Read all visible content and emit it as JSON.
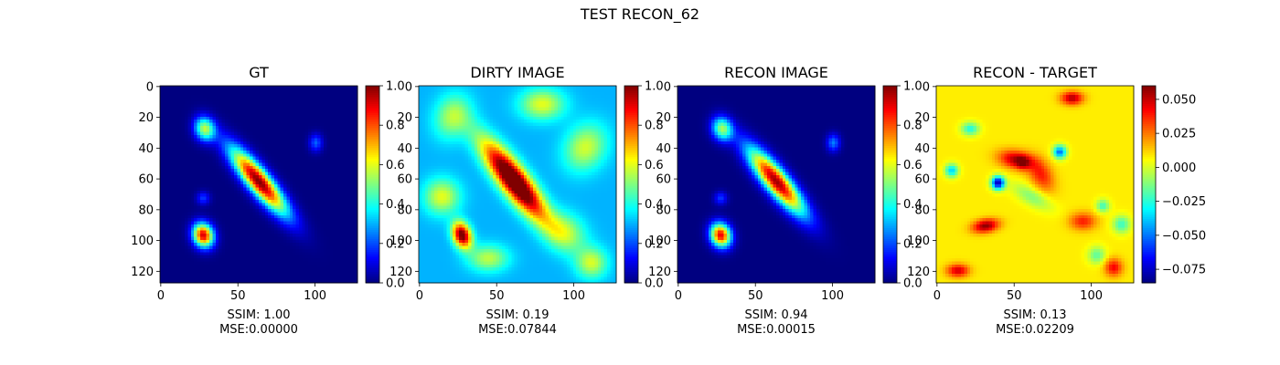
{
  "figure": {
    "suptitle": "TEST RECON_62"
  },
  "chart_data": [
    {
      "type": "heatmap",
      "title": "GT",
      "colormap": "jet",
      "image_size": [
        128,
        128
      ],
      "xticks": [
        0,
        50,
        100
      ],
      "yticks": [
        0,
        20,
        40,
        60,
        80,
        100,
        120
      ],
      "clim": [
        0,
        1
      ],
      "colorbar_ticks": [
        "0.0",
        "0.2",
        "0.4",
        "0.6",
        "0.8",
        "1.0"
      ],
      "colorbar_tick_values": [
        0.0,
        0.2,
        0.4,
        0.6,
        0.8,
        1.0
      ],
      "ssim": "SSIM: 1.00",
      "mse": "MSE:0.00000",
      "sources": [
        {
          "x": 64,
          "y": 62,
          "sx": 5,
          "sy": 19,
          "angle": -40,
          "amp": 1.0
        },
        {
          "x": 28,
          "y": 97,
          "sx": 4.5,
          "sy": 5.5,
          "angle": -20,
          "amp": 0.92
        },
        {
          "x": 29,
          "y": 28,
          "sx": 4.5,
          "sy": 5.5,
          "angle": -20,
          "amp": 0.55
        },
        {
          "x": 101,
          "y": 37,
          "sx": 3,
          "sy": 4,
          "angle": 0,
          "amp": 0.22
        },
        {
          "x": 28,
          "y": 73,
          "sx": 3,
          "sy": 3,
          "angle": 0,
          "amp": 0.18
        }
      ]
    },
    {
      "type": "heatmap",
      "title": "DIRTY IMAGE",
      "colormap": "jet",
      "image_size": [
        128,
        128
      ],
      "xticks": [
        0,
        50,
        100
      ],
      "yticks": [
        0,
        20,
        40,
        60,
        80,
        100,
        120
      ],
      "clim": [
        0,
        1
      ],
      "colorbar_ticks": [
        "0.0",
        "0.2",
        "0.4",
        "0.6",
        "0.8",
        "1.0"
      ],
      "colorbar_tick_values": [
        0.0,
        0.2,
        0.4,
        0.6,
        0.8,
        1.0
      ],
      "ssim": "SSIM: 0.19",
      "mse": "MSE:0.07844",
      "sources": [
        {
          "x": 62,
          "y": 62,
          "sx": 6,
          "sy": 22,
          "angle": -38,
          "amp": 0.9
        },
        {
          "x": 28,
          "y": 97,
          "sx": 4,
          "sy": 6,
          "angle": -20,
          "amp": 0.75
        },
        {
          "x": 22,
          "y": 20,
          "sx": 8,
          "sy": 10,
          "angle": 20,
          "amp": 0.25
        },
        {
          "x": 80,
          "y": 12,
          "sx": 10,
          "sy": 7,
          "angle": 0,
          "amp": 0.3
        },
        {
          "x": 108,
          "y": 40,
          "sx": 9,
          "sy": 11,
          "angle": 30,
          "amp": 0.28
        },
        {
          "x": 15,
          "y": 72,
          "sx": 8,
          "sy": 8,
          "angle": 0,
          "amp": 0.3
        },
        {
          "x": 95,
          "y": 95,
          "sx": 10,
          "sy": 8,
          "angle": 40,
          "amp": 0.25
        },
        {
          "x": 45,
          "y": 112,
          "sx": 9,
          "sy": 6,
          "angle": 0,
          "amp": 0.26
        },
        {
          "x": 112,
          "y": 115,
          "sx": 7,
          "sy": 7,
          "angle": 0,
          "amp": 0.28
        }
      ],
      "base": 0.3
    },
    {
      "type": "heatmap",
      "title": "RECON IMAGE",
      "colormap": "jet",
      "image_size": [
        128,
        128
      ],
      "xticks": [
        0,
        50,
        100
      ],
      "yticks": [
        0,
        20,
        40,
        60,
        80,
        100,
        120
      ],
      "clim": [
        0,
        1
      ],
      "colorbar_ticks": [
        "0.0",
        "0.2",
        "0.4",
        "0.6",
        "0.8",
        "1.0"
      ],
      "colorbar_tick_values": [
        0.0,
        0.2,
        0.4,
        0.6,
        0.8,
        1.0
      ],
      "ssim": "SSIM: 0.94",
      "mse": "MSE:0.00015",
      "sources": [
        {
          "x": 64,
          "y": 62,
          "sx": 5.2,
          "sy": 19,
          "angle": -40,
          "amp": 0.97
        },
        {
          "x": 28,
          "y": 97,
          "sx": 4.5,
          "sy": 5.5,
          "angle": -20,
          "amp": 0.9
        },
        {
          "x": 29,
          "y": 28,
          "sx": 4.5,
          "sy": 5.5,
          "angle": -20,
          "amp": 0.52
        },
        {
          "x": 101,
          "y": 37,
          "sx": 3,
          "sy": 4,
          "angle": 0,
          "amp": 0.25
        },
        {
          "x": 28,
          "y": 73,
          "sx": 3,
          "sy": 3,
          "angle": 0,
          "amp": 0.18
        }
      ]
    },
    {
      "type": "heatmap",
      "title": "RECON - TARGET",
      "colormap": "jet",
      "image_size": [
        128,
        128
      ],
      "xticks": [
        0,
        50,
        100
      ],
      "yticks": [
        0,
        20,
        40,
        60,
        80,
        100,
        120
      ],
      "clim": [
        -0.085,
        0.06
      ],
      "colorbar_ticks": [
        "0.050",
        "0.025",
        "0.000",
        "−0.025",
        "−0.050",
        "−0.075"
      ],
      "colorbar_tick_values": [
        0.05,
        0.025,
        0.0,
        -0.025,
        -0.05,
        -0.075
      ],
      "ssim": "SSIM: 0.13",
      "mse": "MSE:0.02209",
      "base": 0.008,
      "sources": [
        {
          "x": 52,
          "y": 48,
          "sx": 8,
          "sy": 4,
          "angle": 10,
          "amp": 0.045
        },
        {
          "x": 56,
          "y": 50,
          "sx": 3,
          "sy": 3,
          "angle": 0,
          "amp": 0.02
        },
        {
          "x": 68,
          "y": 58,
          "sx": 5,
          "sy": 8,
          "angle": -30,
          "amp": 0.03
        },
        {
          "x": 32,
          "y": 91,
          "sx": 6,
          "sy": 3,
          "angle": -10,
          "amp": 0.05
        },
        {
          "x": 40,
          "y": 63,
          "sx": 3,
          "sy": 3,
          "angle": 0,
          "amp": -0.085
        },
        {
          "x": 80,
          "y": 43,
          "sx": 3,
          "sy": 3,
          "angle": 0,
          "amp": -0.06
        },
        {
          "x": 10,
          "y": 55,
          "sx": 3,
          "sy": 3,
          "angle": 0,
          "amp": -0.045
        },
        {
          "x": 22,
          "y": 28,
          "sx": 4,
          "sy": 3,
          "angle": 0,
          "amp": -0.035
        },
        {
          "x": 62,
          "y": 72,
          "sx": 10,
          "sy": 4,
          "angle": 30,
          "amp": -0.02
        },
        {
          "x": 88,
          "y": 8,
          "sx": 5,
          "sy": 3,
          "angle": 0,
          "amp": 0.045
        },
        {
          "x": 14,
          "y": 120,
          "sx": 5,
          "sy": 3,
          "angle": 0,
          "amp": 0.04
        },
        {
          "x": 115,
          "y": 118,
          "sx": 4,
          "sy": 4,
          "angle": 0,
          "amp": 0.035
        },
        {
          "x": 108,
          "y": 78,
          "sx": 3,
          "sy": 3,
          "angle": 0,
          "amp": -0.03
        },
        {
          "x": 95,
          "y": 88,
          "sx": 6,
          "sy": 4,
          "angle": 0,
          "amp": 0.03
        },
        {
          "x": 120,
          "y": 90,
          "sx": 4,
          "sy": 4,
          "angle": 0,
          "amp": -0.03
        },
        {
          "x": 104,
          "y": 110,
          "sx": 4,
          "sy": 4,
          "angle": 0,
          "amp": -0.025
        }
      ]
    }
  ]
}
